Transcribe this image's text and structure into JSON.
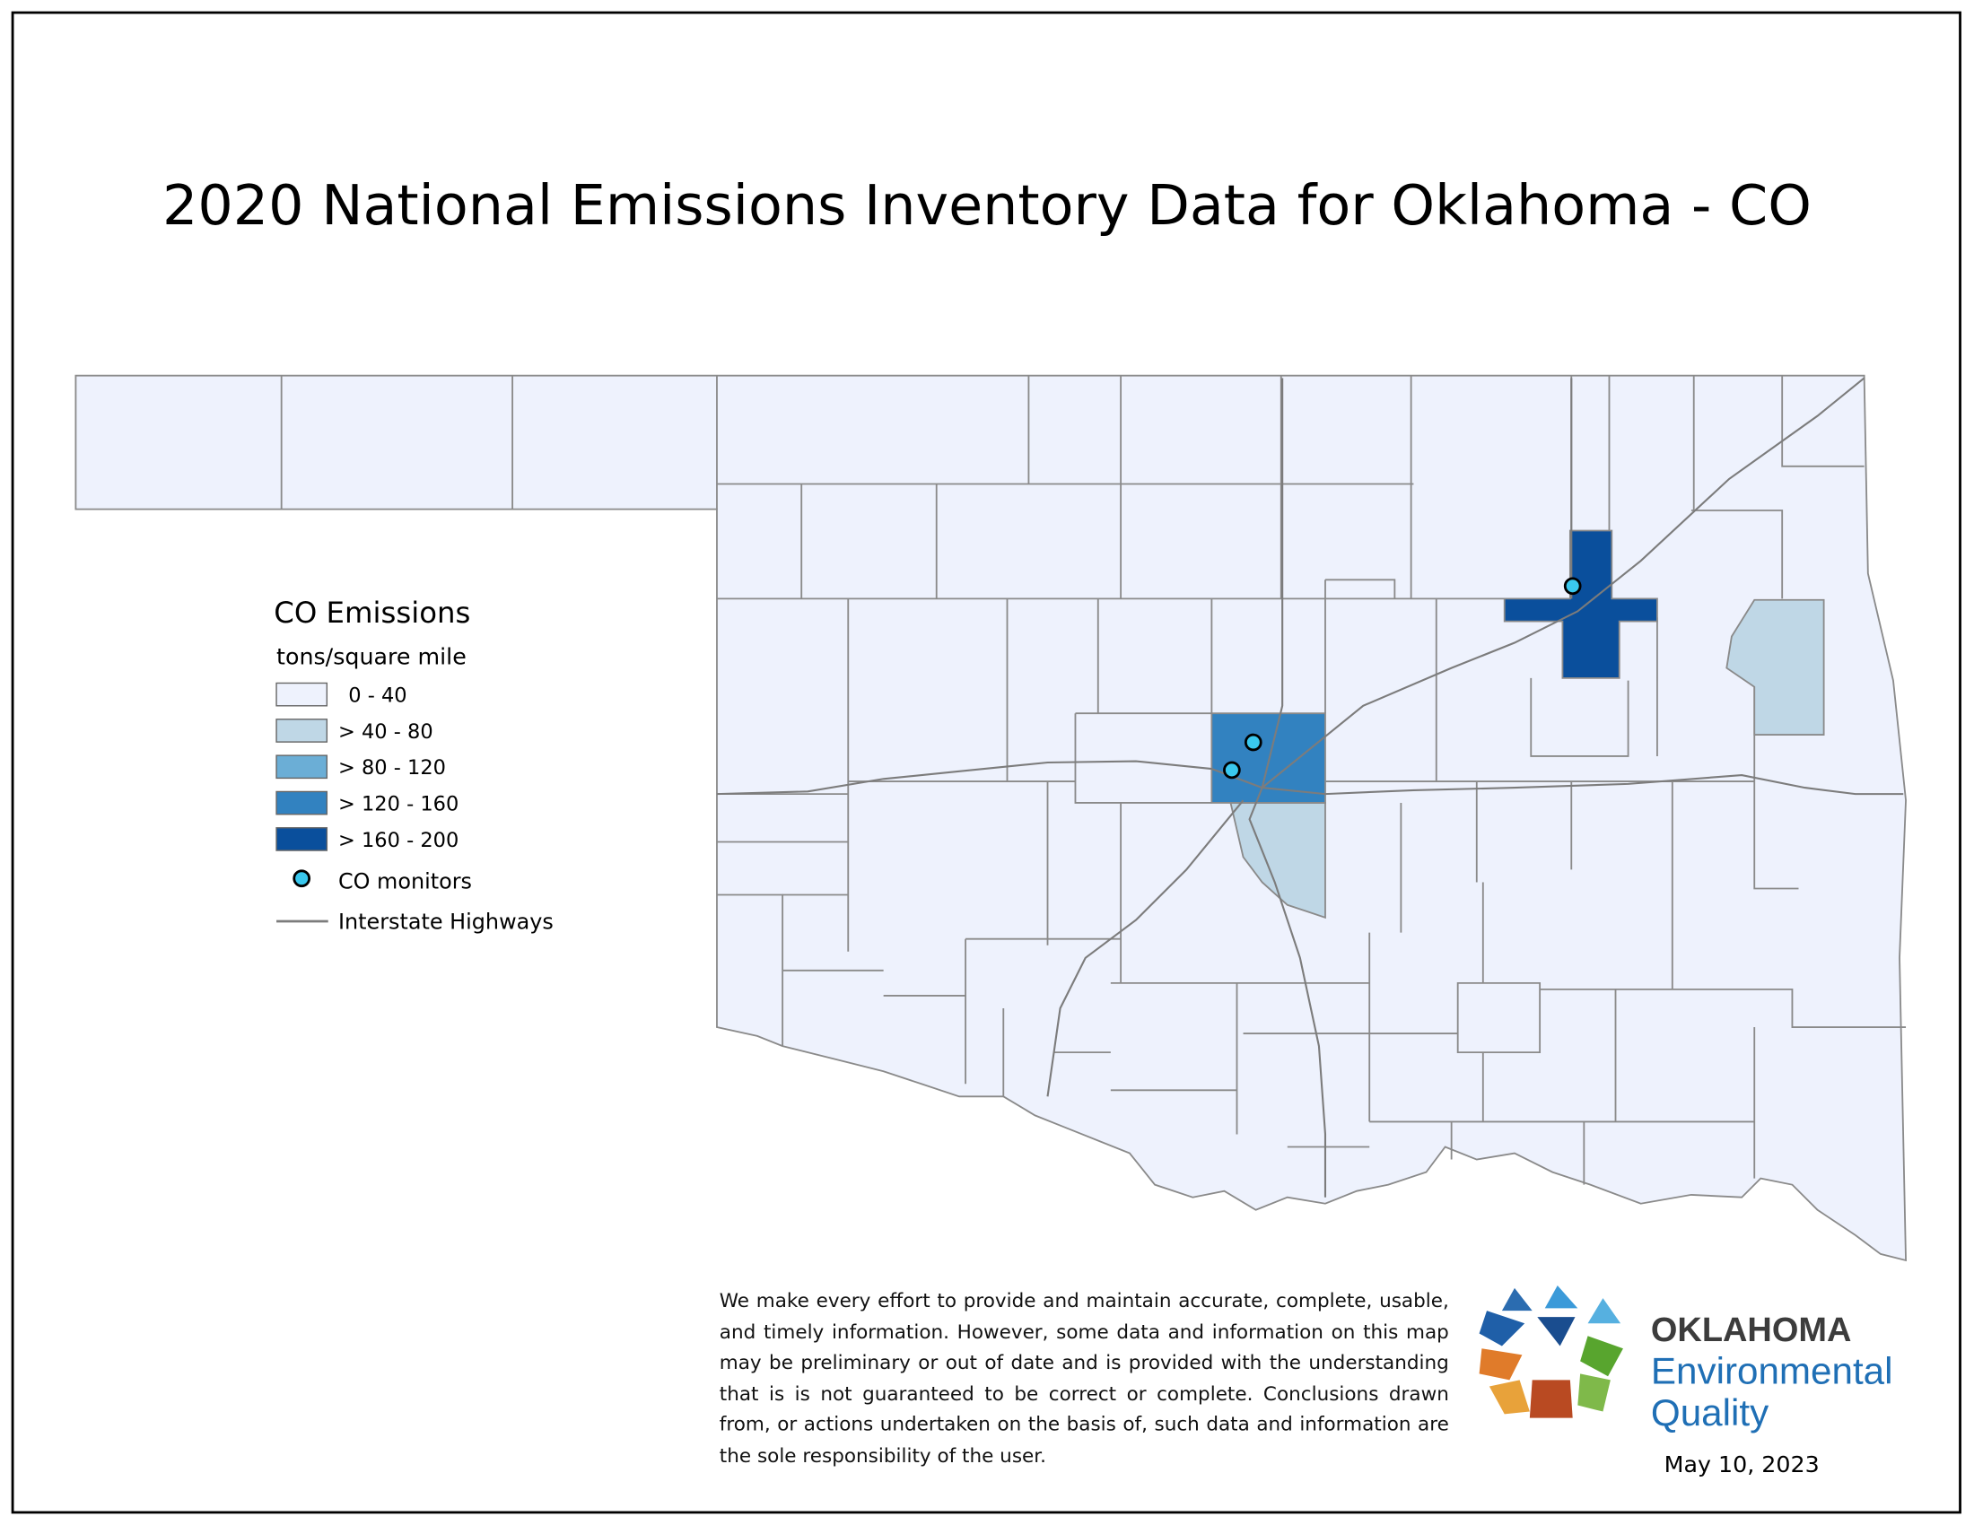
{
  "title": "2020 National Emissions Inventory Data for Oklahoma - CO",
  "legend": {
    "title": "CO Emissions",
    "subtitle": "tons/square mile",
    "items": [
      {
        "label": "0 - 40",
        "color": "#eef2fd"
      },
      {
        "label": "> 40 - 80",
        "color": "#bfd7e6"
      },
      {
        "label": "> 80 - 120",
        "color": "#6baed6"
      },
      {
        "label": "> 120 - 160",
        "color": "#3282c0"
      },
      {
        "label": "> 160 - 200",
        "color": "#0a4f9c"
      }
    ],
    "monitors": "CO monitors",
    "highways": "Interstate Highways"
  },
  "disclaimer": "We make every effort to provide and maintain accurate, complete, usable, and timely information. However, some data and information on this map may be preliminary or out of date and is provided with the understanding that is is not guaranteed to be correct or complete. Conclusions drawn from, or actions undertaken on the basis of, such data and information are the sole responsibility of the user.",
  "logo": {
    "line1": "OKLAHOMA",
    "line2": "Environmental",
    "line3": "Quality"
  },
  "date": "May 10, 2023"
}
